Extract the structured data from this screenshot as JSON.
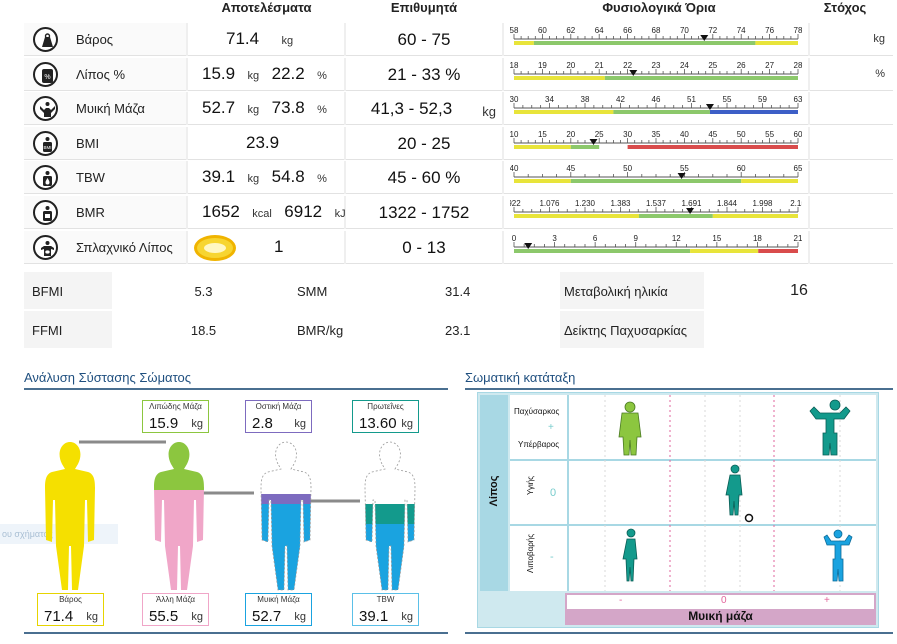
{
  "headers": {
    "results": "Αποτελέσματα",
    "desired": "Επιθυμητά",
    "ranges": "Φυσιολογικά Όρια",
    "target": "Στόχος"
  },
  "metrics": [
    {
      "name": "Βάρος",
      "icon": "weight-icon",
      "value": "71.4",
      "unit": "kg",
      "desired": "60 - 75",
      "desired_unit": "",
      "target_unit": "kg",
      "ticks": [
        "58",
        "60",
        "62",
        "64",
        "66",
        "68",
        "70",
        "72",
        "74",
        "76",
        "78"
      ],
      "marker": 0.67,
      "bar": [
        [
          "#e8e43a",
          0.0,
          0.07
        ],
        [
          "#8cc86b",
          0.07,
          0.85
        ],
        [
          "#e8e43a",
          0.85,
          1.0
        ]
      ]
    },
    {
      "name": "Λίπος %",
      "icon": "body-fat-icon",
      "value": "15.9",
      "unit": "kg",
      "value2": "22.2",
      "unit2": "%",
      "desired": "21 - 33 %",
      "desired_unit": "",
      "target_unit": "%",
      "ticks": [
        "18",
        "19",
        "20",
        "21",
        "22",
        "23",
        "24",
        "25",
        "26",
        "27",
        "28"
      ],
      "marker": 0.42,
      "bar": [
        [
          "#e8e43a",
          0.0,
          0.32
        ],
        [
          "#8cc86b",
          0.32,
          1.0
        ]
      ]
    },
    {
      "name": "Μυική Μάζα",
      "icon": "muscle-icon",
      "value": "52.7",
      "unit": "kg",
      "value2": "73.8",
      "unit2": "%",
      "desired": "41,3 - 52,3",
      "desired_unit": "kg",
      "target_unit": "",
      "ticks": [
        "30",
        "34",
        "38",
        "42",
        "46",
        "51",
        "55",
        "59",
        "63"
      ],
      "marker": 0.69,
      "bar": [
        [
          "#e8e43a",
          0.0,
          0.35
        ],
        [
          "#8cc86b",
          0.35,
          0.69
        ],
        [
          "#3d5fc7",
          0.69,
          1.0
        ]
      ]
    },
    {
      "name": "BMI",
      "icon": "bmi-icon",
      "value": "23.9",
      "unit": "",
      "desired": "20 - 25",
      "desired_unit": "",
      "target_unit": "",
      "ticks": [
        "10",
        "15",
        "20",
        "25",
        "30",
        "35",
        "40",
        "45",
        "50",
        "55",
        "60"
      ],
      "marker": 0.28,
      "bar": [
        [
          "#e8e43a",
          0.0,
          0.2
        ],
        [
          "#8cc86b",
          0.2,
          0.3
        ],
        [
          "#d94c4c",
          0.4,
          1.0
        ]
      ]
    },
    {
      "name": "TBW",
      "icon": "water-icon",
      "value": "39.1",
      "unit": "kg",
      "value2": "54.8",
      "unit2": "%",
      "desired": "45 - 60 %",
      "desired_unit": "",
      "target_unit": "",
      "ticks": [
        "40",
        "45",
        "50",
        "55",
        "60",
        "65"
      ],
      "marker": 0.59,
      "bar": [
        [
          "#e8e43a",
          0.0,
          0.2
        ],
        [
          "#8cc86b",
          0.2,
          0.8
        ],
        [
          "#e8e43a",
          0.8,
          1.0
        ]
      ]
    },
    {
      "name": "BMR",
      "icon": "bmr-icon",
      "value": "1652",
      "unit": "kcal",
      "value2": "6912",
      "unit2": "kJ",
      "desired": "1322 - 1752",
      "desired_unit": "",
      "target_unit": "",
      "ticks": [
        "922",
        "1.076",
        "1.230",
        "1.383",
        "1.537",
        "1.691",
        "1.844",
        "1.998",
        "2.15"
      ],
      "marker": 0.62,
      "bar": [
        [
          "#e8e43a",
          0.0,
          0.44
        ],
        [
          "#8cc86b",
          0.44,
          0.7
        ],
        [
          "#e8e43a",
          0.7,
          1.0
        ]
      ]
    },
    {
      "name": "Σπλαχνικό Λίπος",
      "icon": "visceral-fat-icon",
      "value": "1",
      "unit": "",
      "desired": "0 - 13",
      "desired_unit": "",
      "target_unit": "",
      "ticks": [
        "0",
        "3",
        "6",
        "9",
        "12",
        "15",
        "18",
        "21"
      ],
      "marker": 0.05,
      "bar": [
        [
          "#8cc86b",
          0.0,
          0.62
        ],
        [
          "#e8e43a",
          0.62,
          0.86
        ],
        [
          "#d94c4c",
          0.86,
          1.0
        ]
      ]
    }
  ],
  "secondary": {
    "bfmi_label": "BFMI",
    "bfmi_value": "5.3",
    "smm_label": "SMM",
    "smm_value": "31.4",
    "metabolic_age_label": "Μεταβολική ηλικία",
    "metabolic_age_value": "16",
    "ffmi_label": "FFMI",
    "ffmi_value": "18.5",
    "bmr_kg_label": "BMR/kg",
    "bmr_kg_value": "23.1",
    "obesity_index_label": "Δείκτης Παχυσαρκίας",
    "obesity_index_value": ""
  },
  "composition": {
    "title": "Ανάλυση Σύστασης Σώματος",
    "faded_text": "ου σχήματος",
    "fat_mass": {
      "label": "Λιπώδης Μάζα",
      "value": "15.9",
      "unit": "kg"
    },
    "bone_mass": {
      "label": "Οστική Μάζα",
      "value": "2.8",
      "unit": "kg"
    },
    "protein": {
      "label": "Πρωτεΐνες",
      "value": "13.60",
      "unit": "kg"
    },
    "weight": {
      "label": "Βάρος",
      "value": "71.4",
      "unit": "kg"
    },
    "other_mass": {
      "label": "Άλλη Μάζα",
      "value": "55.5",
      "unit": "kg"
    },
    "muscle_mass": {
      "label": "Μυική Μάζα",
      "value": "52.7",
      "unit": "kg"
    },
    "tbw": {
      "label": "TBW",
      "value": "39.1",
      "unit": "kg"
    }
  },
  "classification": {
    "title": "Σωματική κατάταξη",
    "y_axis": "Λίπος",
    "row_top_a": "Παχύσαρκος",
    "row_top_plus": "+",
    "row_top_b": "Υπέρβαρος",
    "row_mid": "Υγιής",
    "row_mid_zero": "0",
    "row_bot": "Λιποβαρής",
    "row_bot_minus": "-",
    "x_axis": "Μυική μάζα",
    "x_minus": "-",
    "x_zero": "0",
    "x_plus": "+"
  },
  "colors": {
    "fat": "#8cc63f",
    "other": "#f0a6c8",
    "weight": "#f5e000",
    "muscle": "#1aa3e0",
    "bone": "#7d6bbf",
    "protein": "#139a8c"
  }
}
